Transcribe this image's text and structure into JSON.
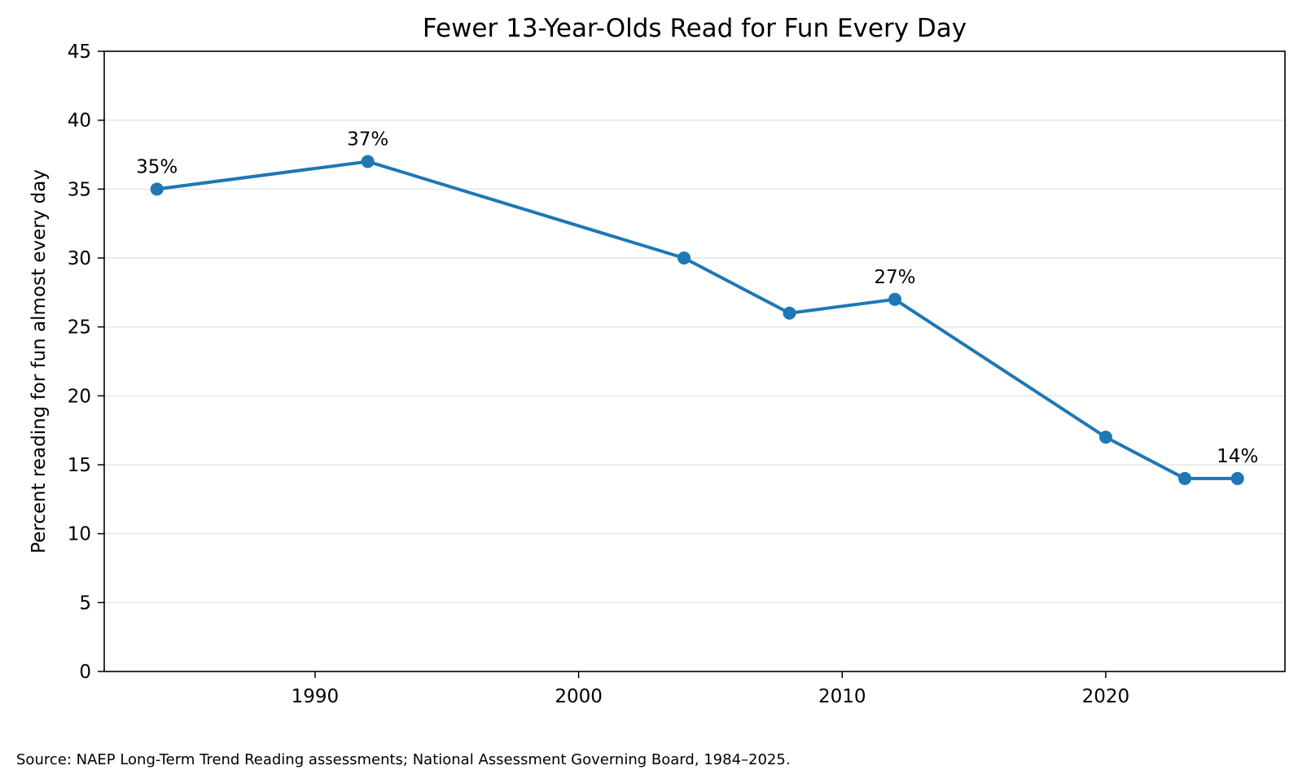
{
  "chart_data": {
    "type": "line",
    "title": "Fewer 13-Year-Olds Read for Fun Every Day",
    "ylabel": "Percent reading for fun almost every day",
    "xlabel": "",
    "xlim": [
      1982,
      2026.8
    ],
    "ylim": [
      0,
      45
    ],
    "xticks": [
      1990,
      2000,
      2010,
      2020
    ],
    "yticks": [
      0,
      5,
      10,
      15,
      20,
      25,
      30,
      35,
      40,
      45
    ],
    "grid": "horizontal",
    "color": "#1f77b4",
    "series": [
      {
        "x": [
          1984,
          1992,
          2004,
          2008,
          2012,
          2020,
          2023,
          2025
        ],
        "values": [
          35,
          37,
          30,
          26,
          27,
          17,
          14,
          14
        ]
      }
    ],
    "annotations": [
      {
        "x": 1984,
        "y": 35,
        "text": "35%"
      },
      {
        "x": 1992,
        "y": 37,
        "text": "37%"
      },
      {
        "x": 2012,
        "y": 27,
        "text": "27%"
      },
      {
        "x": 2025,
        "y": 14,
        "text": "14%"
      }
    ]
  },
  "source_note": "Source: NAEP Long-Term Trend Reading assessments; National Assessment Governing Board, 1984–2025."
}
